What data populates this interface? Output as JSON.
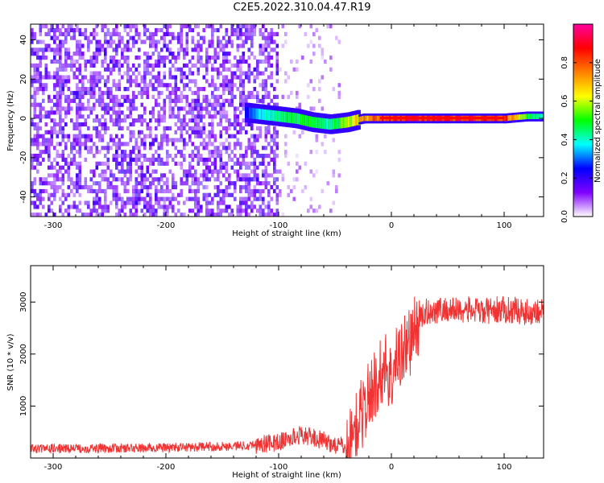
{
  "page_title": "C2E5.2022.310.04.47.R19",
  "chart_data": [
    {
      "type": "heatmap",
      "title": "",
      "xlabel": "Height of straight line (km)",
      "ylabel": "Frequency (Hz)",
      "xlim": [
        -320,
        135
      ],
      "ylim": [
        -50,
        48
      ],
      "xticks": [
        -300,
        -200,
        -100,
        0,
        100
      ],
      "yticks": [
        -40,
        -20,
        0,
        20,
        40
      ],
      "colorbar": {
        "label": "Normalized spectral amplitude",
        "range": [
          0.0,
          1.0
        ],
        "ticks": [
          0.0,
          0.2,
          0.4,
          0.6,
          0.8
        ],
        "colors": [
          "#ffffff",
          "#8000ff",
          "#0000ff",
          "#00ffff",
          "#00ff00",
          "#ffff00",
          "#ff8000",
          "#ff0000",
          "#ff00a0"
        ]
      },
      "ridge": [
        {
          "x": -130,
          "freq": 3,
          "amp": 0.25
        },
        {
          "x": -115,
          "freq": 2,
          "amp": 0.4
        },
        {
          "x": -100,
          "freq": 1,
          "amp": 0.45
        },
        {
          "x": -85,
          "freq": 0,
          "amp": 0.5
        },
        {
          "x": -70,
          "freq": -2,
          "amp": 0.5
        },
        {
          "x": -55,
          "freq": -3,
          "amp": 0.45
        },
        {
          "x": -40,
          "freq": -2,
          "amp": 0.6
        },
        {
          "x": -25,
          "freq": 0,
          "amp": 0.75
        },
        {
          "x": -10,
          "freq": 0,
          "amp": 0.85
        },
        {
          "x": 10,
          "freq": 0,
          "amp": 0.9
        },
        {
          "x": 40,
          "freq": 0,
          "amp": 0.9
        },
        {
          "x": 70,
          "freq": 0,
          "amp": 0.9
        },
        {
          "x": 100,
          "freq": 0,
          "amp": 0.85
        },
        {
          "x": 120,
          "freq": 1,
          "amp": 0.5
        },
        {
          "x": 135,
          "freq": 1,
          "amp": 0.45
        }
      ],
      "noise_region_edge_x": -100,
      "grid": false
    },
    {
      "type": "line",
      "title": "",
      "xlabel": "Height of straight line (km)",
      "ylabel": "SNR (10 * v/v)",
      "xlim": [
        -320,
        135
      ],
      "ylim": [
        0,
        3700
      ],
      "xticks": [
        -300,
        -200,
        -100,
        0,
        100
      ],
      "yticks": [
        1000,
        2000,
        3000
      ],
      "series": [
        {
          "color": "#f03232",
          "x": [
            -320,
            -300,
            -280,
            -260,
            -240,
            -220,
            -200,
            -180,
            -160,
            -140,
            -120,
            -100,
            -90,
            -80,
            -70,
            -60,
            -50,
            -40,
            -35,
            -30,
            -25,
            -20,
            -15,
            -10,
            -5,
            0,
            5,
            10,
            15,
            20,
            25,
            30,
            40,
            50,
            60,
            70,
            80,
            90,
            100,
            110,
            120,
            135
          ],
          "values": [
            180,
            180,
            185,
            185,
            190,
            190,
            200,
            210,
            220,
            230,
            260,
            300,
            380,
            450,
            400,
            330,
            250,
            220,
            350,
            700,
            900,
            1200,
            1400,
            1600,
            1800,
            1500,
            1900,
            2100,
            2200,
            2400,
            2650,
            2800,
            2850,
            2850,
            2850,
            2850,
            2800,
            2850,
            2850,
            2850,
            2800,
            2850
          ]
        }
      ],
      "grid": false
    }
  ]
}
